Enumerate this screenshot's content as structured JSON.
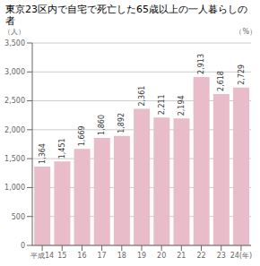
{
  "chart_data": {
    "type": "bar",
    "title": "東京23区内で自宅で死亡した65歳以上の一人暮らしの者",
    "ylabel": "（人）",
    "annotations": [
      "（%）"
    ],
    "categories": [
      "平成14",
      "15",
      "16",
      "17",
      "18",
      "19",
      "20",
      "21",
      "22",
      "23",
      "24(年)"
    ],
    "values": [
      1364,
      1451,
      1669,
      1860,
      1892,
      2361,
      2211,
      2194,
      2913,
      2618,
      2729
    ],
    "value_labels": [
      "1,364",
      "1,451",
      "1,669",
      "1,860",
      "1,892",
      "2,361",
      "2,211",
      "2,194",
      "2,913",
      "2,618",
      "2,729"
    ],
    "color": "#e8bcc8",
    "ylim": [
      0,
      3500
    ],
    "yticks": [
      0,
      500,
      {
        "value": 1000,
        "label": "1,000"
      },
      {
        "value": 1500,
        "label": "1,500"
      },
      {
        "value": 2000,
        "label": "2,000"
      },
      {
        "value": 2500,
        "label": "2,500"
      },
      {
        "value": 3000,
        "label": "3,000"
      },
      {
        "value": 3500,
        "label": "3,500"
      }
    ],
    "grid": true,
    "data_labels": true
  }
}
